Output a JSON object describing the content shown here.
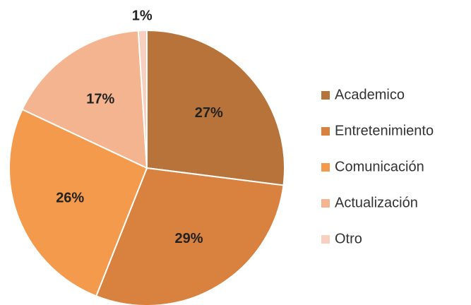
{
  "chart_data": {
    "type": "pie",
    "categories": [
      "Academico",
      "Entretenimiento",
      "Comunicación",
      "Actualización",
      "Otro"
    ],
    "values": [
      27,
      29,
      26,
      17,
      1
    ],
    "value_labels": [
      "27%",
      "29%",
      "26%",
      "17%",
      "1%"
    ],
    "colors": [
      "#b8733a",
      "#d9813e",
      "#f39a4c",
      "#f5b490",
      "#f8d0c0"
    ],
    "legend": "right"
  }
}
